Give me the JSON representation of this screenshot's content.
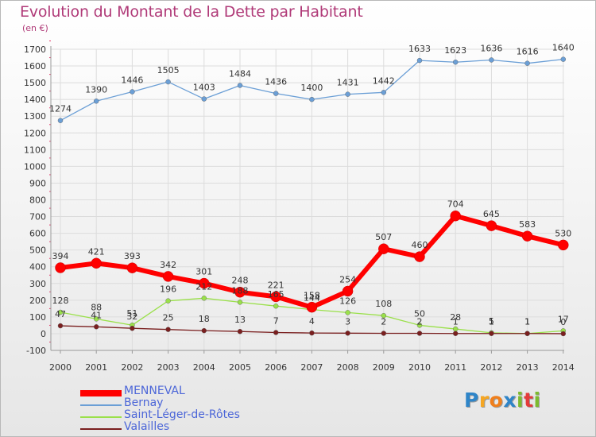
{
  "header": {
    "title": "Evolution du Montant de la Dette par Habitant",
    "subtitle": "(en €)"
  },
  "logo": {
    "text": "Proxiti"
  },
  "colors": {
    "title": "#b03a78",
    "axis": "#9a9a9a",
    "grid": "#dcdcdc",
    "tick_red": "#e33b6a"
  },
  "chart_data": {
    "type": "line",
    "title": "Evolution du Montant de la Dette par Habitant",
    "xlabel": "",
    "ylabel": "(en €)",
    "x": [
      "2000",
      "2001",
      "2002",
      "2003",
      "2004",
      "2005",
      "2006",
      "2007",
      "2008",
      "2009",
      "2010",
      "2011",
      "2012",
      "2013",
      "2014"
    ],
    "ylim": [
      -100,
      1700
    ],
    "yticks": [
      -100,
      0,
      100,
      200,
      300,
      400,
      500,
      600,
      700,
      800,
      900,
      1000,
      1100,
      1200,
      1300,
      1400,
      1500,
      1600,
      1700
    ],
    "grid": true,
    "legend_position": "bottom-left",
    "series": [
      {
        "name": "MENNEVAL",
        "color": "#ff0000",
        "values": [
          394,
          421,
          393,
          342,
          301,
          248,
          221,
          158,
          254,
          507,
          460,
          704,
          645,
          583,
          530
        ]
      },
      {
        "name": "Bernay",
        "color": "#6b9fd6",
        "values": [
          1274,
          1390,
          1446,
          1505,
          1403,
          1484,
          1436,
          1400,
          1431,
          1442,
          1633,
          1623,
          1636,
          1616,
          1640
        ]
      },
      {
        "name": "Saint-Léger-de-Rôtes",
        "color": "#9ae04a",
        "values": [
          128,
          88,
          51,
          196,
          212,
          188,
          165,
          144,
          126,
          108,
          50,
          28,
          5,
          1,
          17
        ]
      },
      {
        "name": "Valailles",
        "color": "#7a1f1f",
        "values": [
          47,
          41,
          32,
          25,
          18,
          13,
          7,
          4,
          3,
          2,
          2,
          1,
          1,
          1,
          0
        ]
      }
    ]
  }
}
